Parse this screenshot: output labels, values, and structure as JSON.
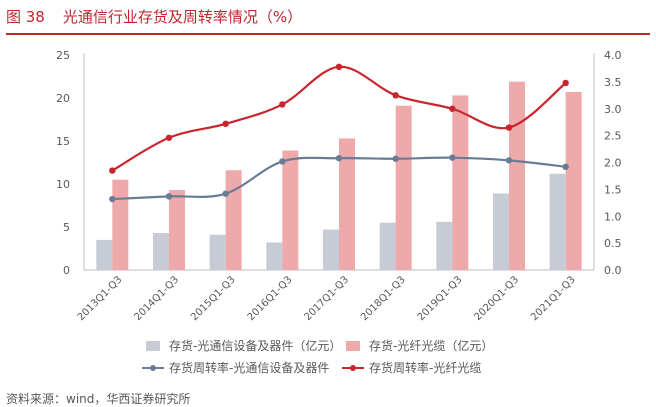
{
  "figure": {
    "number": "图 38",
    "title": "光通信行业存货及周转率情况（%）",
    "source": "资料来源：wind，华西证券研究所"
  },
  "chart_data": {
    "type": "bar",
    "categories": [
      "2013Q1-Q3",
      "2014Q1-Q3",
      "2015Q1-Q3",
      "2016Q1-Q3",
      "2017Q1-Q3",
      "2018Q1-Q3",
      "2019Q1-Q3",
      "2020Q1-Q3",
      "2021Q1-Q3"
    ],
    "ylim": [
      0,
      25
    ],
    "yticks": [
      0,
      5,
      10,
      15,
      20,
      25
    ],
    "y2lim": [
      0,
      4
    ],
    "y2ticks": [
      "0.0",
      "0.5",
      "1.0",
      "1.5",
      "2.0",
      "2.5",
      "3.0",
      "3.5",
      "4.0"
    ],
    "grid": false,
    "legend_position": "bottom",
    "series": [
      {
        "name": "存货-光通信设备及器件（亿元）",
        "kind": "bar",
        "axis": "left",
        "color": "#c7cbd6",
        "values": [
          3.5,
          4.3,
          4.1,
          3.2,
          4.7,
          5.5,
          5.6,
          8.9,
          11.2
        ]
      },
      {
        "name": "存货-光纤光缆（亿元）",
        "kind": "bar",
        "axis": "left",
        "color": "#eeaaaa",
        "values": [
          10.5,
          9.3,
          11.6,
          13.9,
          15.3,
          19.1,
          20.3,
          21.9,
          20.7
        ]
      },
      {
        "name": "存货周转率-光通信设备及器件",
        "kind": "line",
        "axis": "right",
        "color": "#6a7b96",
        "values": [
          1.32,
          1.37,
          1.42,
          2.02,
          2.08,
          2.07,
          2.09,
          2.04,
          1.92
        ]
      },
      {
        "name": "存货周转率-光纤光缆",
        "kind": "line",
        "axis": "right",
        "color": "#c9252c",
        "values": [
          1.85,
          2.46,
          2.72,
          3.08,
          3.78,
          3.25,
          3.0,
          2.65,
          3.48
        ]
      }
    ]
  }
}
